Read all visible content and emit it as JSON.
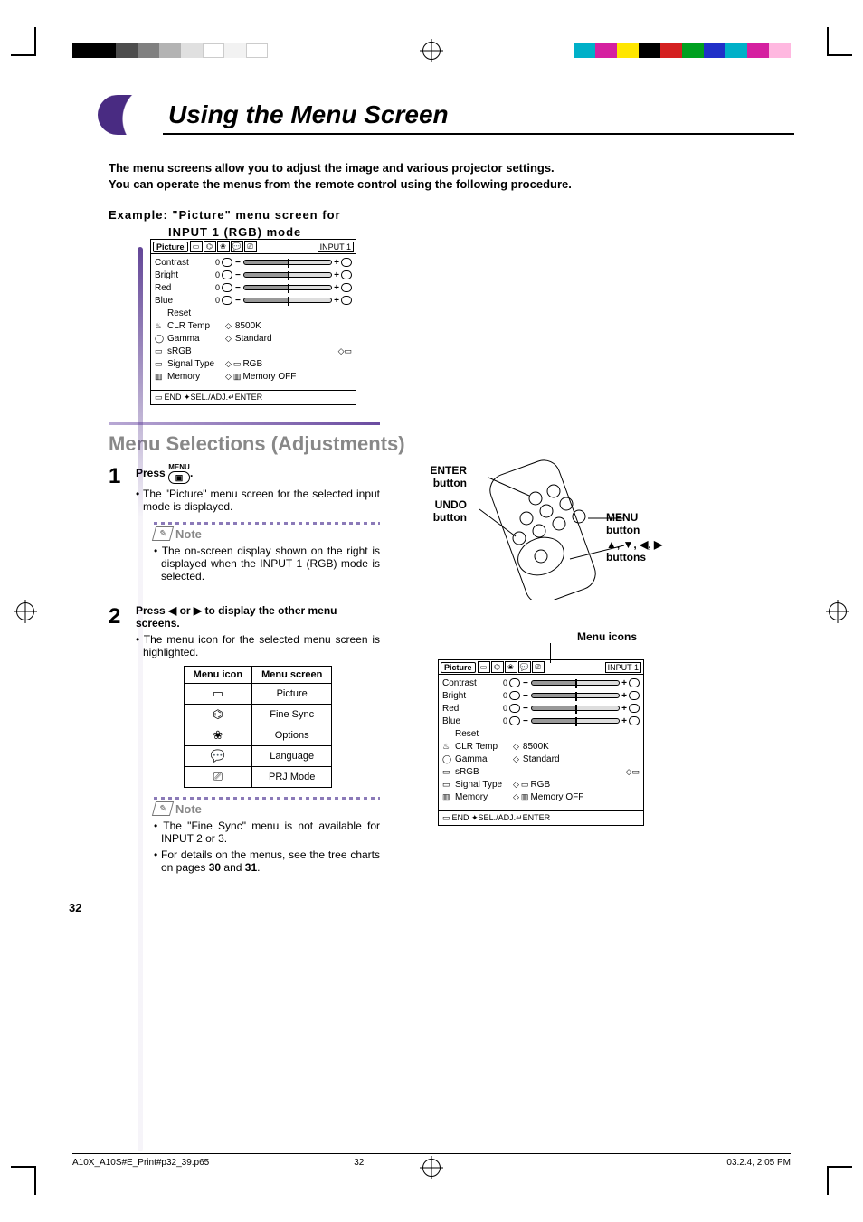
{
  "colorbars": {
    "left_colors": [
      "#000000",
      "#000000",
      "#4d4d4d",
      "#808080",
      "#b3b3b3",
      "#e0e0e0",
      "#ffffff",
      "#f2f2f2",
      "#ffffff"
    ],
    "right_colors": [
      "#00b0c8",
      "#d520a0",
      "#ffe600",
      "#000000",
      "#d42020",
      "#00a020",
      "#2030c8",
      "#00b0c8",
      "#d520a0",
      "#ffb8e0"
    ]
  },
  "title": "Using the Menu Screen",
  "intro_line1": "The menu screens allow you to adjust the image and various projector settings.",
  "intro_line2": "You can operate the menus from the remote control using the following procedure.",
  "example_label": "Example: \"Picture\" menu screen for",
  "example_sub": "INPUT 1 (RGB) mode",
  "osd": {
    "active_tab": "Picture",
    "input_label": "INPUT  1",
    "rows_slider": [
      {
        "label": "Contrast",
        "val": "0"
      },
      {
        "label": "Bright",
        "val": "0"
      },
      {
        "label": "Red",
        "val": "0"
      },
      {
        "label": "Blue",
        "val": "0"
      }
    ],
    "rows_other": [
      {
        "label": "Reset",
        "value": ""
      },
      {
        "label": "CLR Temp",
        "value": "8500K",
        "icon": "◇",
        "pre": "♨"
      },
      {
        "label": "Gamma",
        "value": "Standard",
        "icon": "◇",
        "pre": "◯"
      },
      {
        "label": "sRGB",
        "value": "",
        "pre": "▭",
        "tail": "◇▭"
      },
      {
        "label": "Signal Type",
        "value": "RGB",
        "icon": "◇",
        "pre": "▭",
        "mid": "▭"
      },
      {
        "label": "Memory",
        "value": "Memory OFF",
        "icon": "◇",
        "pre": "▥",
        "mid": "▥"
      }
    ],
    "footer": "END ✦SEL./ADJ.↵ENTER",
    "footer_prefix_icon": "▭"
  },
  "section_heading": "Menu Selections (Adjustments)",
  "step1": {
    "num": "1",
    "menu_label": "MENU",
    "press": "Press ",
    "period": ".",
    "bullet": "The \"Picture\" menu screen for the selected input mode is displayed.",
    "note": "The on-screen display shown on the right is displayed when the INPUT 1 (RGB) mode is selected."
  },
  "step2": {
    "num": "2",
    "line": "Press ◀ or ▶ to display the other menu screens.",
    "bullet": "The menu icon for the selected menu screen is highlighted.",
    "table": {
      "headers": [
        "Menu icon",
        "Menu screen"
      ],
      "rows": [
        {
          "icon": "▭",
          "name": "Picture"
        },
        {
          "icon": "⌬",
          "name": "Fine Sync"
        },
        {
          "icon": "❀",
          "name": "Options"
        },
        {
          "icon": "💬",
          "name": "Language"
        },
        {
          "icon": "⎚",
          "name": "PRJ Mode"
        }
      ]
    },
    "notes": [
      "The \"Fine Sync\" menu is not available for INPUT 2 or 3.",
      "For details on the menus, see the tree charts on pages 30 and 31."
    ],
    "bold_pages": [
      "30",
      "31"
    ]
  },
  "remote": {
    "enter": "ENTER button",
    "undo": "UNDO button",
    "menu": "MENU button",
    "arrows": "▲, ▼, ◀, ▶ buttons"
  },
  "menu_icons_label": "Menu icons",
  "note_label": "Note",
  "page_number": "32",
  "footer_file": "A10X_A10S#E_Print#p32_39.p65",
  "footer_page": "32",
  "footer_date": "03.2.4, 2:05 PM",
  "theme": {
    "accent": "#492b82",
    "section_gray": "#888888"
  }
}
